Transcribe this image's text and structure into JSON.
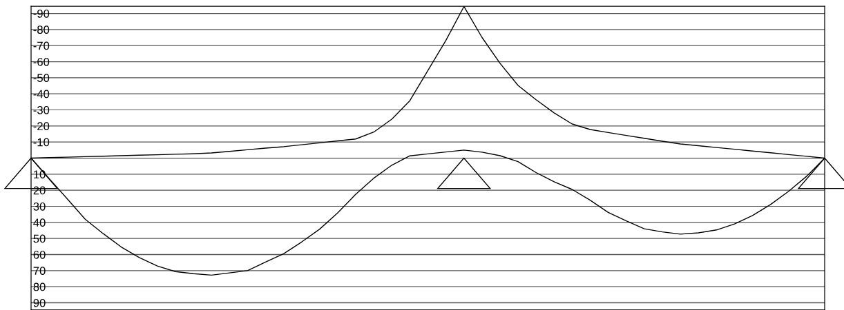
{
  "chart_data": {
    "type": "line",
    "categories": [
      null,
      null,
      null,
      null,
      null,
      null,
      null,
      null,
      null,
      null,
      null,
      null,
      null,
      null,
      null,
      null,
      null,
      null,
      null,
      null,
      null,
      null,
      null,
      null,
      null,
      null,
      null,
      null,
      null,
      null,
      null,
      null,
      null,
      null,
      null,
      null,
      null,
      null,
      null,
      null,
      null,
      null,
      null,
      null,
      null
    ],
    "series": [
      {
        "color": "#000000",
        "values": [
          0,
          -0.3,
          -0.6,
          -0.9,
          -1.2,
          -1.5,
          -1.8,
          -2.1,
          -2.4,
          -2.7,
          -3.2,
          -4.2,
          -5.2,
          -6.2,
          -7.1,
          -8.3,
          -9.5,
          -10.7,
          -11.9,
          -16.2,
          -24.2,
          -35.7,
          -54.5,
          -73.2,
          -94.3,
          -75.1,
          -59,
          -45.2,
          -36.3,
          -28.1,
          -21.2,
          -17.8,
          -15.9,
          -14.1,
          -12.3,
          -10.5,
          -8.8,
          -7.7,
          -6.6,
          -5.5,
          -4.4,
          -3.3,
          -2.2,
          -1.1,
          0
        ]
      },
      {
        "color": "#000000",
        "values": [
          0,
          12.7,
          25.3,
          38,
          47,
          55.3,
          61.9,
          67.1,
          70.6,
          71.9,
          72.8,
          71.4,
          70,
          64.7,
          59.5,
          52.2,
          44.2,
          34.1,
          22.5,
          12.5,
          4.4,
          -1.4,
          -2.6,
          -3.8,
          -5,
          -3.7,
          -1.5,
          2.2,
          9,
          14.7,
          19.5,
          26.2,
          33.8,
          39.1,
          44,
          45.9,
          47.3,
          46.5,
          44.7,
          41,
          35.7,
          28.9,
          20.7,
          11.3,
          0
        ]
      }
    ],
    "ylim": [
      94.5,
      -94.5
    ],
    "yticks": [
      {
        "value": -90,
        "label": "-90"
      },
      {
        "value": -80,
        "label": "-80"
      },
      {
        "value": -70,
        "label": "-70"
      },
      {
        "value": -60,
        "label": "-60"
      },
      {
        "value": -50,
        "label": "-50"
      },
      {
        "value": -40,
        "label": "-40"
      },
      {
        "value": -30,
        "label": "-30"
      },
      {
        "value": -20,
        "label": "-20"
      },
      {
        "value": -10,
        "label": "-10"
      },
      {
        "value": 0,
        "label": null
      },
      {
        "value": 10,
        "label": "10"
      },
      {
        "value": 20,
        "label": "20"
      },
      {
        "value": 30,
        "label": "30"
      },
      {
        "value": 40,
        "label": "40"
      },
      {
        "value": 50,
        "label": "50"
      },
      {
        "value": 60,
        "label": "60"
      },
      {
        "value": 70,
        "label": "70"
      },
      {
        "value": 80,
        "label": "80"
      },
      {
        "value": 90,
        "label": "90"
      }
    ],
    "tick_labels": "y",
    "grid": "y",
    "line_style": "solid",
    "marker": "none"
  }
}
